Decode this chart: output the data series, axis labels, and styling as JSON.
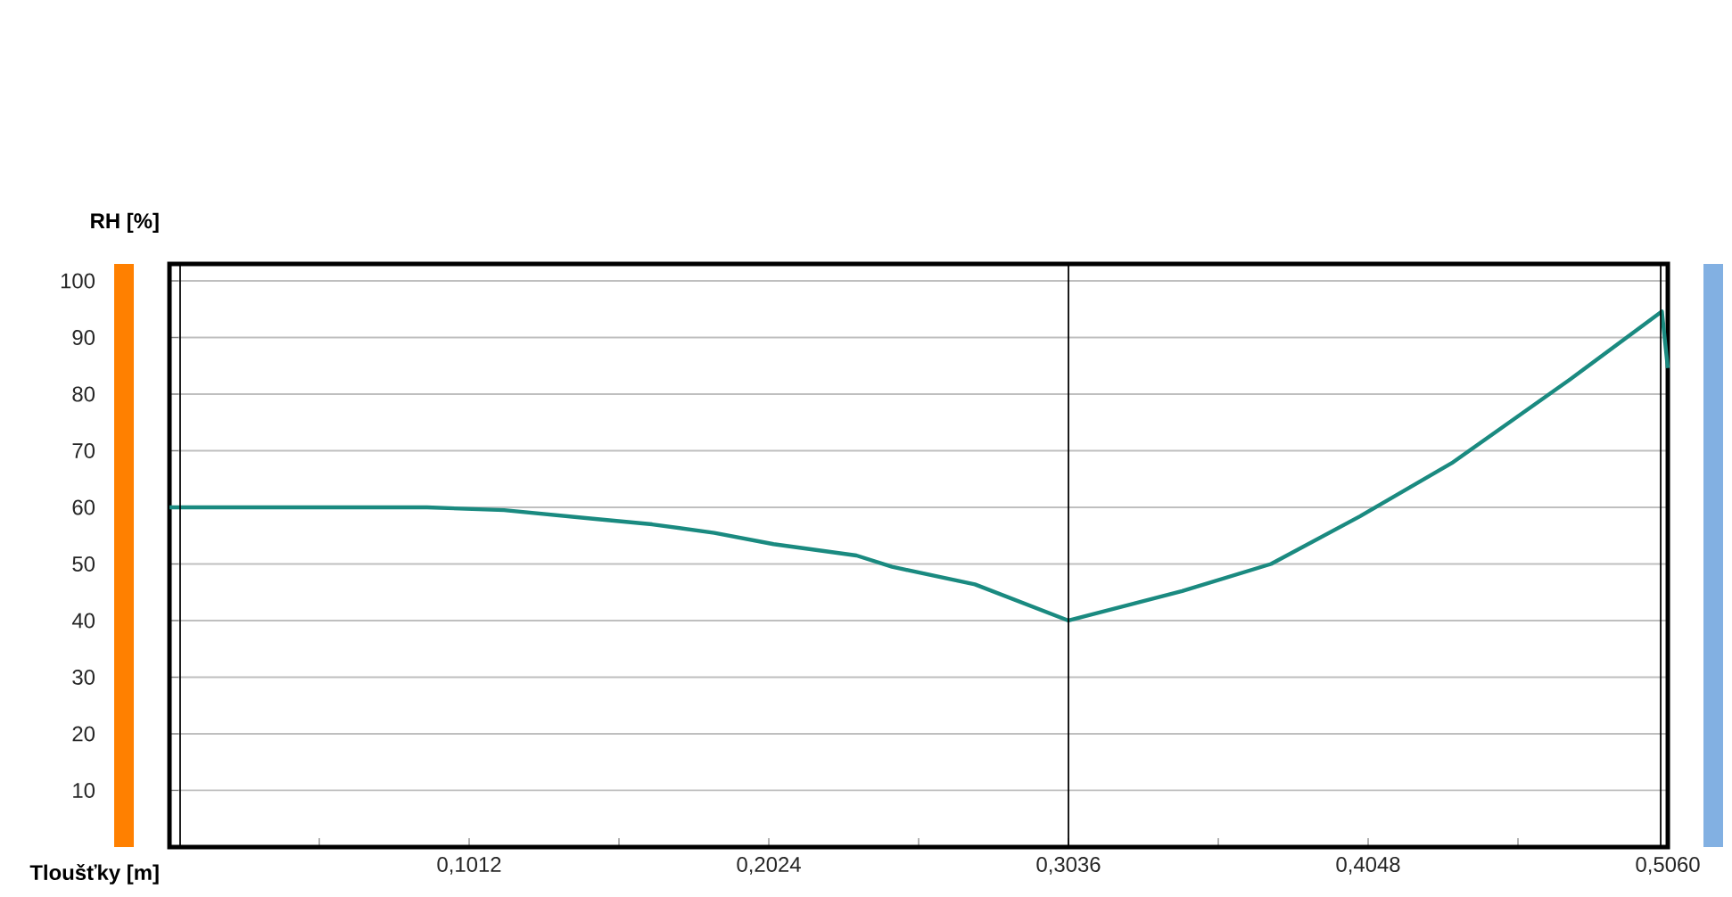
{
  "chart_data": {
    "type": "line",
    "xlabel": "Tloušťky [m]",
    "ylabel": "RH [%]",
    "x": [
      0,
      0.087,
      0.113,
      0.143,
      0.163,
      0.184,
      0.204,
      0.232,
      0.244,
      0.272,
      0.3036,
      0.342,
      0.372,
      0.402,
      0.433,
      0.453,
      0.473,
      0.504,
      0.506
    ],
    "series": [
      {
        "color": "#1a8a80",
        "values": [
          60,
          60,
          59.5,
          58,
          57,
          55.5,
          53.5,
          51.5,
          49.5,
          46.4,
          40,
          45.2,
          50,
          58.4,
          67.8,
          75.2,
          82.6,
          94.6,
          84.6
        ]
      }
    ],
    "xlim": [
      0,
      0.506
    ],
    "xticks": [
      {
        "value": 0.0506,
        "label": null
      },
      {
        "value": 0.1012,
        "label": "0,1012"
      },
      {
        "value": 0.1518,
        "label": null
      },
      {
        "value": 0.2024,
        "label": "0,2024"
      },
      {
        "value": 0.253,
        "label": null
      },
      {
        "value": 0.3036,
        "label": "0,3036"
      },
      {
        "value": 0.3542,
        "label": null
      },
      {
        "value": 0.4048,
        "label": "0,4048"
      },
      {
        "value": 0.4554,
        "label": null
      },
      {
        "value": 0.506,
        "label": "0,5060"
      }
    ],
    "ylim": [
      0,
      103
    ],
    "yticks": [
      10,
      20,
      30,
      40,
      50,
      60,
      70,
      80,
      90,
      100
    ],
    "grid": "y",
    "marker": "none",
    "line_style": "solid",
    "ref_lines": [
      {
        "axis": "x",
        "value": 0.0036,
        "color": "#000000"
      },
      {
        "axis": "x",
        "value": 0.3036,
        "color": "#000000"
      },
      {
        "axis": "x",
        "value": 0.5036,
        "color": "#000000"
      }
    ]
  }
}
